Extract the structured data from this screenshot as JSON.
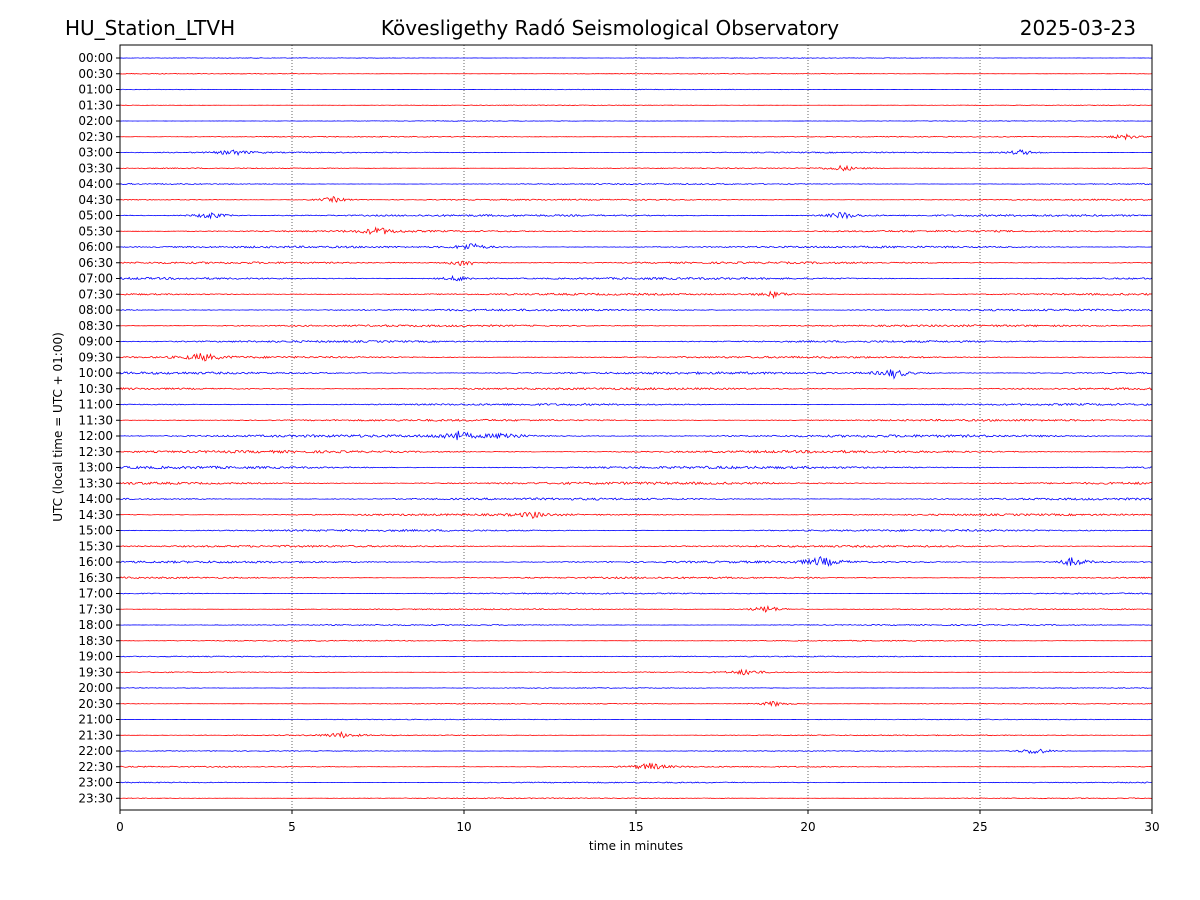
{
  "header": {
    "station": "HU_Station_LTVH",
    "observatory": "Kövesligethy Radó Seismological Observatory",
    "date": "2025-03-23"
  },
  "chart_data": {
    "type": "line",
    "title": "Kövesligethy Radó Seismological Observatory",
    "xlabel": "time in minutes",
    "ylabel": "UTC (local time = UTC + 01:00)",
    "xlim": [
      0,
      30
    ],
    "xticks": [
      0,
      5,
      10,
      15,
      20,
      25,
      30
    ],
    "grid": "vertical dotted lines at every 5 minutes",
    "colors": [
      "#0000ff",
      "#ff0000"
    ],
    "rows": [
      "00:00",
      "00:30",
      "01:00",
      "01:30",
      "02:00",
      "02:30",
      "03:00",
      "03:30",
      "04:00",
      "04:30",
      "05:00",
      "05:30",
      "06:00",
      "06:30",
      "07:00",
      "07:30",
      "08:00",
      "08:30",
      "09:00",
      "09:30",
      "10:00",
      "10:30",
      "11:00",
      "11:30",
      "12:00",
      "12:30",
      "13:00",
      "13:30",
      "14:00",
      "14:30",
      "15:00",
      "15:30",
      "16:00",
      "16:30",
      "17:00",
      "17:30",
      "18:00",
      "18:30",
      "19:00",
      "19:30",
      "20:00",
      "20:30",
      "21:00",
      "21:30",
      "22:00",
      "22:30",
      "23:00",
      "23:30"
    ],
    "noise_level": [
      0.3,
      0.35,
      0.3,
      0.3,
      0.3,
      0.45,
      0.6,
      0.5,
      0.6,
      0.7,
      1.0,
      0.9,
      1.0,
      1.0,
      1.1,
      1.0,
      1.0,
      1.0,
      1.0,
      1.0,
      1.2,
      1.1,
      1.0,
      1.0,
      1.3,
      1.3,
      1.3,
      1.3,
      1.1,
      1.0,
      1.0,
      1.0,
      1.1,
      0.9,
      0.7,
      0.6,
      0.6,
      0.5,
      0.5,
      0.5,
      0.4,
      0.4,
      0.4,
      0.5,
      0.4,
      0.6,
      0.6,
      0.5
    ],
    "events": [
      {
        "row": "02:30",
        "minute": 29.2,
        "amplitude": 3
      },
      {
        "row": "03:00",
        "minute": 3.3,
        "amplitude": 3
      },
      {
        "row": "03:00",
        "minute": 26.2,
        "amplitude": 3
      },
      {
        "row": "03:30",
        "minute": 21.0,
        "amplitude": 3
      },
      {
        "row": "04:30",
        "minute": 6.2,
        "amplitude": 3
      },
      {
        "row": "05:00",
        "minute": 2.6,
        "amplitude": 4
      },
      {
        "row": "05:00",
        "minute": 21.0,
        "amplitude": 4
      },
      {
        "row": "05:30",
        "minute": 7.5,
        "amplitude": 4
      },
      {
        "row": "06:00",
        "minute": 10.2,
        "amplitude": 4
      },
      {
        "row": "06:30",
        "minute": 10.0,
        "amplitude": 4
      },
      {
        "row": "07:00",
        "minute": 9.8,
        "amplitude": 3
      },
      {
        "row": "07:30",
        "minute": 19.0,
        "amplitude": 3
      },
      {
        "row": "09:30",
        "minute": 2.4,
        "amplitude": 4
      },
      {
        "row": "10:00",
        "minute": 22.5,
        "amplitude": 5
      },
      {
        "row": "12:00",
        "minute": 9.8,
        "amplitude": 5
      },
      {
        "row": "12:00",
        "minute": 11.2,
        "amplitude": 4
      },
      {
        "row": "14:30",
        "minute": 12.0,
        "amplitude": 3
      },
      {
        "row": "16:00",
        "minute": 20.4,
        "amplitude": 5
      },
      {
        "row": "16:00",
        "minute": 27.7,
        "amplitude": 5
      },
      {
        "row": "17:30",
        "minute": 18.8,
        "amplitude": 4
      },
      {
        "row": "19:30",
        "minute": 18.2,
        "amplitude": 3
      },
      {
        "row": "20:30",
        "minute": 19.0,
        "amplitude": 3
      },
      {
        "row": "21:30",
        "minute": 6.4,
        "amplitude": 3
      },
      {
        "row": "22:00",
        "minute": 26.6,
        "amplitude": 4
      },
      {
        "row": "22:30",
        "minute": 15.4,
        "amplitude": 4
      }
    ]
  }
}
